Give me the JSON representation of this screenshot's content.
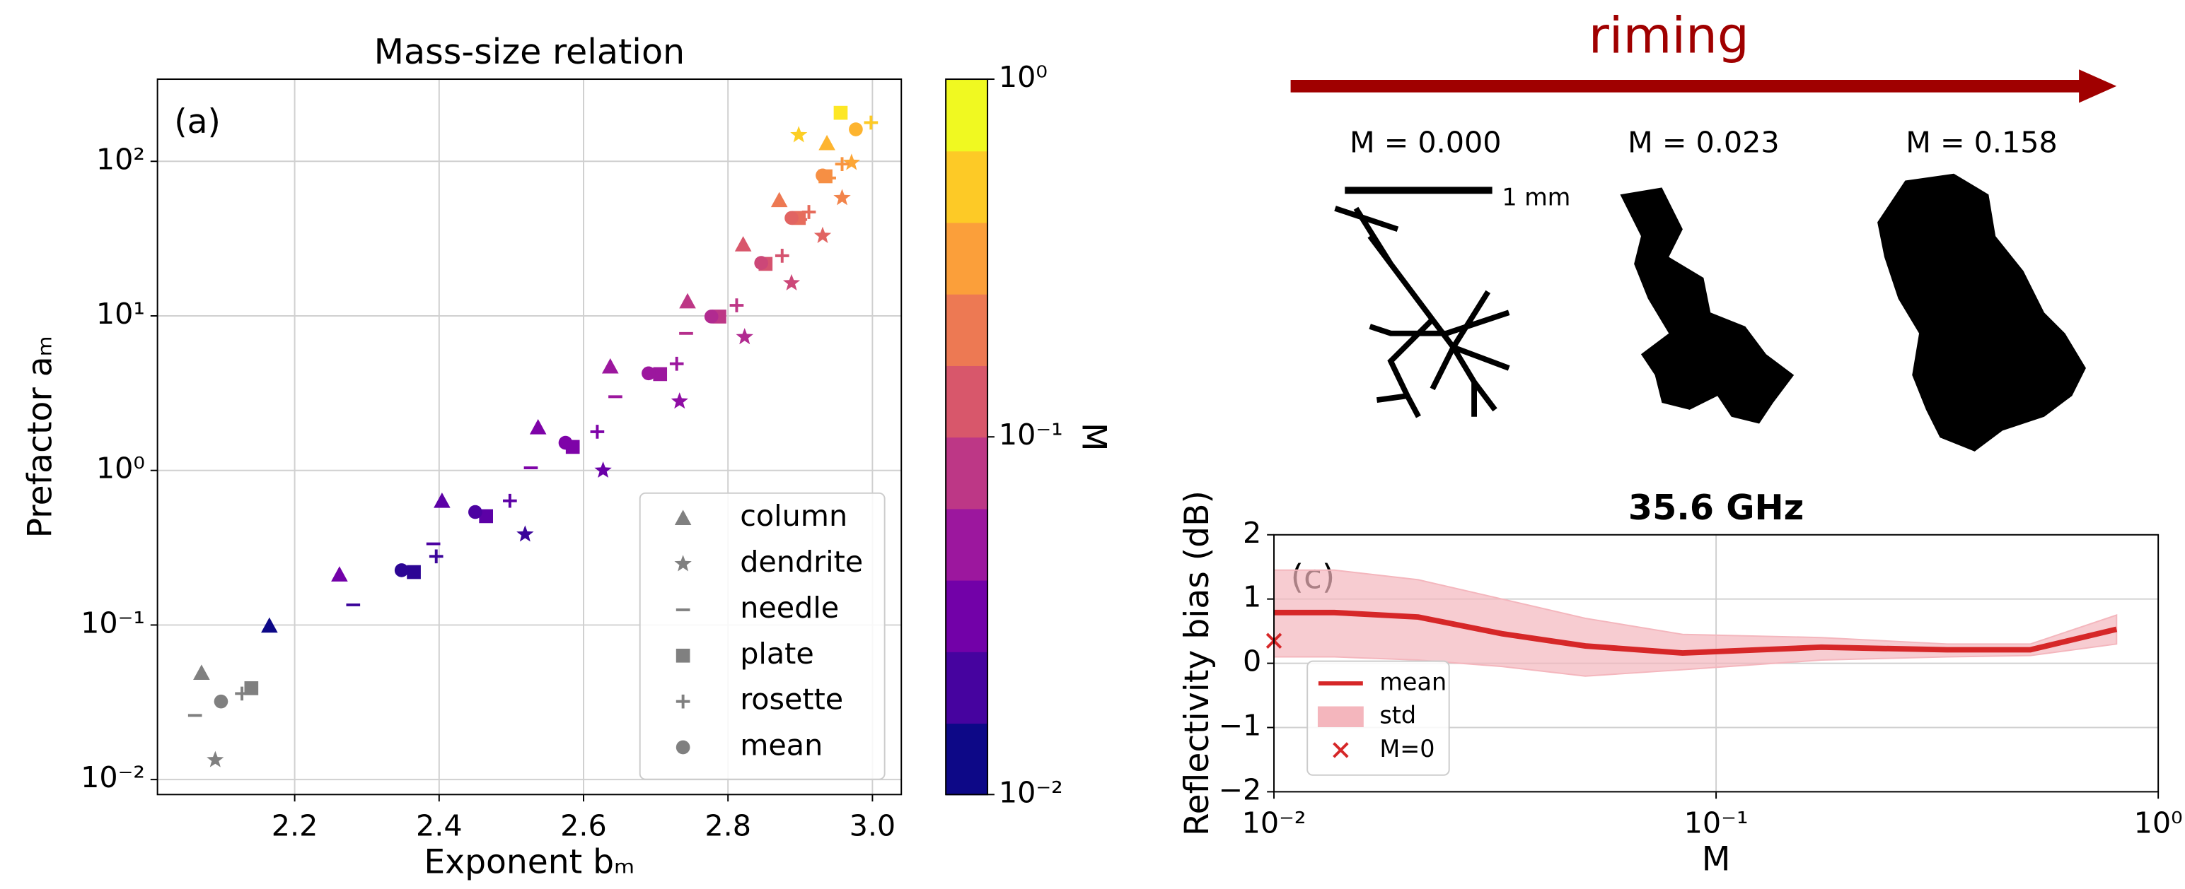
{
  "chart_data": [
    {
      "type": "scatter",
      "title": "Mass-size relation",
      "annotation": "(a)",
      "x_label": "Exponent bₘ",
      "y_label": "Prefactor aₘ",
      "xlim": [
        2.01,
        3.04
      ],
      "xticks": [
        2.2,
        2.4,
        2.6,
        2.8,
        {
          "value": 3,
          "label": "3.0"
        }
      ],
      "ylim": [
        0.008,
        340
      ],
      "yscale": "log",
      "yticks": [
        {
          "value": 0.01,
          "label": "10⁻²"
        },
        {
          "value": 0.1,
          "label": "10⁻¹"
        },
        {
          "value": 1,
          "label": "10⁰"
        },
        {
          "value": 10,
          "label": "10¹"
        },
        {
          "value": 100,
          "label": "10²"
        }
      ],
      "grid": true,
      "legend": "lower right",
      "series": [
        {
          "name": "column",
          "marker": "^",
          "color": "#808080",
          "x": [
            2.071,
            2.165,
            2.262,
            2.404,
            2.537,
            2.637,
            2.744,
            2.821,
            2.871,
            2.937
          ],
          "values": [
            0.049,
            0.099,
            0.212,
            0.635,
            1.9,
            4.7,
            12.4,
            29,
            56,
            131
          ],
          "colors": [
            "#808080",
            "#0d0887",
            "#7201a8",
            "#5c01a6",
            "#7e03a8",
            "#9c179e",
            "#bd3786",
            "#d8576b",
            "#ed7953",
            "#fdb42f"
          ]
        },
        {
          "name": "dendrite",
          "marker": "*",
          "color": "#808080",
          "x": [
            2.09,
            2.519,
            2.627,
            2.733,
            2.823,
            2.888,
            2.931,
            2.958,
            2.971,
            2.898
          ],
          "values": [
            0.0134,
            0.386,
            1.0,
            2.8,
            7.3,
            16.3,
            33,
            58,
            98,
            148
          ],
          "colors": [
            "#808080",
            "#3b049a",
            "#6a00a8",
            "#8f0da4",
            "#b12a90",
            "#cc4778",
            "#e16462",
            "#f2844b",
            "#fca636",
            "#fcce25"
          ]
        },
        {
          "name": "needle",
          "marker": "_",
          "color": "#808080",
          "x": [
            2.062,
            2.281,
            2.392,
            2.527,
            2.644,
            2.742,
            2.9,
            2.94
          ],
          "values": [
            0.026,
            0.135,
            0.335,
            1.04,
            3.0,
            7.7,
            42,
            78
          ],
          "colors": [
            "#808080",
            "#3b049a",
            "#4c02a1",
            "#7e03a8",
            "#9c179e",
            "#b52f8c",
            "#e16462",
            "#f68f44"
          ]
        },
        {
          "name": "plate",
          "marker": "s",
          "color": "#808080",
          "x": [
            2.14,
            2.365,
            2.465,
            2.585,
            2.706,
            2.788,
            2.852,
            2.898,
            2.935,
            2.956
          ],
          "values": [
            0.039,
            0.22,
            0.506,
            1.42,
            4.2,
            9.9,
            21.7,
            43,
            80,
            206
          ],
          "colors": [
            "#808080",
            "#2c0594",
            "#5c01a6",
            "#7e03a8",
            "#9c179e",
            "#bd3786",
            "#d5536f",
            "#e66c5c",
            "#f68f44",
            "#fde725"
          ]
        },
        {
          "name": "rosette",
          "marker": "+",
          "color": "#808080",
          "x": [
            2.127,
            2.396,
            2.498,
            2.619,
            2.729,
            2.812,
            2.875,
            2.912,
            2.958,
            2.998
          ],
          "values": [
            0.036,
            0.278,
            0.636,
            1.78,
            4.9,
            11.7,
            24.5,
            47,
            96,
            178
          ],
          "colors": [
            "#808080",
            "#3b049a",
            "#5c01a6",
            "#7e03a8",
            "#9c179e",
            "#bd3786",
            "#d5536f",
            "#e66c5c",
            "#f89540",
            "#fdca26"
          ]
        },
        {
          "name": "mean",
          "marker": "o",
          "color": "#808080",
          "x": [
            2.098,
            2.348,
            2.45,
            2.575,
            2.69,
            2.777,
            2.846,
            2.888,
            2.931,
            2.977
          ],
          "values": [
            0.032,
            0.226,
            0.538,
            1.51,
            4.25,
            9.9,
            22,
            43,
            81,
            161
          ],
          "colors": [
            "#808080",
            "#2c0594",
            "#4c02a1",
            "#7e03a8",
            "#9c179e",
            "#b12a90",
            "#cc4778",
            "#e16462",
            "#f68f44",
            "#fdb42f"
          ]
        }
      ],
      "colorbar": {
        "label": "M",
        "lim": [
          0.01,
          1
        ],
        "scale": "log",
        "ticks": [
          {
            "value": 0.01,
            "label": "10⁻²"
          },
          {
            "value": 0.1,
            "label": "10⁻¹"
          },
          {
            "value": 1,
            "label": "10⁰"
          }
        ],
        "colors": [
          "#0d0887",
          "#46039f",
          "#7201a8",
          "#9c179e",
          "#bd3786",
          "#d8576b",
          "#ed7953",
          "#fb9f3a",
          "#fdca26",
          "#f0f921"
        ]
      }
    },
    {
      "type": "line",
      "title": "35.6 GHz",
      "annotation": "(c)",
      "x_label": "M",
      "y_label": "Reflectivity bias (dB)",
      "xscale": "log",
      "xlim": [
        0.01,
        1
      ],
      "xticks": [
        {
          "value": 0.01,
          "label": "10⁻²"
        },
        {
          "value": 0.1,
          "label": "10⁻¹"
        },
        {
          "value": 1,
          "label": "10⁰"
        }
      ],
      "ylim": [
        -2,
        2
      ],
      "yticks": [
        {
          "value": -2,
          "label": "−2"
        },
        {
          "value": -1,
          "label": "−1"
        },
        0,
        1,
        2
      ],
      "grid": true,
      "legend": "lower left",
      "x": [
        0.01,
        0.0137,
        0.0212,
        0.0328,
        0.0506,
        0.084,
        0.173,
        0.333,
        0.514,
        0.805
      ],
      "series": [
        {
          "name": "mean",
          "color": "#d62728",
          "values": [
            0.79,
            0.79,
            0.72,
            0.46,
            0.27,
            0.16,
            0.25,
            0.21,
            0.21,
            0.53
          ]
        },
        {
          "name": "std",
          "color": "#f4b6bd",
          "upper": [
            1.45,
            1.45,
            1.3,
            1.0,
            0.7,
            0.45,
            0.4,
            0.3,
            0.3,
            0.75
          ],
          "lower": [
            0.1,
            0.1,
            0.05,
            -0.05,
            -0.2,
            -0.1,
            0.05,
            0.1,
            0.12,
            0.3
          ]
        },
        {
          "name": "M=0",
          "color": "#d62728",
          "marker": "x",
          "x": [
            0.01
          ],
          "values": [
            0.35
          ]
        }
      ]
    }
  ],
  "panel_b": {
    "arrow_label": "riming",
    "particles": [
      "M = 0.000",
      "M = 0.023",
      "M = 0.158"
    ],
    "scale_label": "1 mm"
  }
}
